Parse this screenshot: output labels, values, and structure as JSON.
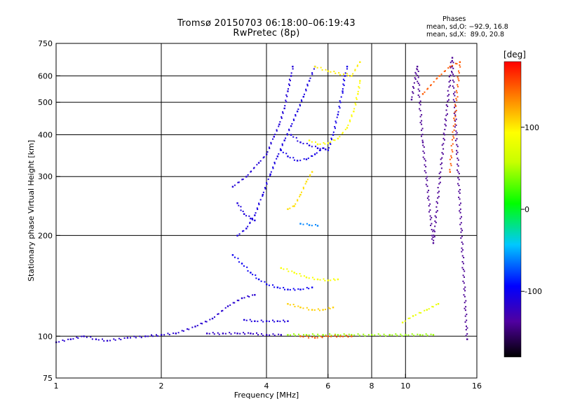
{
  "title": "Tromsø 20150703 06:18:00–06:19:43",
  "subtitle": "RwPretec (8p)",
  "phase_info": {
    "heading": "Phases",
    "line1": "mean, sd,O: −92.9, 16.8",
    "line2": "mean, sd,X:  89.0, 20.8"
  },
  "colorbar": {
    "label": "[deg]",
    "ticks": [
      {
        "v": 100,
        "label": "100"
      },
      {
        "v": 0,
        "label": "0"
      },
      {
        "v": -100,
        "label": "-100"
      }
    ],
    "range": [
      -180,
      180
    ]
  },
  "chart_data": {
    "type": "scatter",
    "xlabel": "Frequency [MHz]",
    "ylabel": "Stationary phase Virtual Height [km]",
    "x_scale": "log",
    "y_scale": "log",
    "xlim": [
      1,
      16
    ],
    "ylim": [
      75,
      750
    ],
    "x_ticks": [
      {
        "v": 1,
        "label": "1"
      },
      {
        "v": 2,
        "label": "2"
      },
      {
        "v": 4,
        "label": "4"
      },
      {
        "v": 6,
        "label": "6"
      },
      {
        "v": 8,
        "label": "8"
      },
      {
        "v": 10,
        "label": "10"
      },
      {
        "v": 16,
        "label": "16"
      }
    ],
    "y_ticks": [
      {
        "v": 75,
        "label": "75"
      },
      {
        "v": 100,
        "label": "100"
      },
      {
        "v": 200,
        "label": "200"
      },
      {
        "v": 300,
        "label": "300"
      },
      {
        "v": 400,
        "label": "400"
      },
      {
        "v": 500,
        "label": "500"
      },
      {
        "v": 600,
        "label": "600"
      },
      {
        "v": 750,
        "label": "750"
      }
    ],
    "grid_x": [
      2,
      4,
      6,
      8,
      10
    ],
    "grid_y": [
      100,
      200,
      300,
      400,
      500,
      600
    ],
    "series": [
      {
        "phase": -115,
        "points": [
          [
            1.0,
            96
          ],
          [
            1.1,
            98
          ],
          [
            1.2,
            100
          ],
          [
            1.3,
            98
          ],
          [
            1.4,
            97
          ],
          [
            1.6,
            99
          ],
          [
            1.8,
            100
          ],
          [
            2.0,
            101
          ],
          [
            2.2,
            102
          ],
          [
            2.5,
            107
          ],
          [
            2.8,
            113
          ],
          [
            3.1,
            123
          ],
          [
            3.4,
            130
          ],
          [
            3.7,
            133
          ]
        ]
      },
      {
        "phase": -120,
        "points": [
          [
            2.7,
            102
          ],
          [
            3.0,
            102
          ],
          [
            3.3,
            102
          ],
          [
            3.6,
            102
          ],
          [
            4.0,
            101
          ],
          [
            4.4,
            101
          ]
        ]
      },
      {
        "phase": -110,
        "points": [
          [
            3.45,
            112
          ],
          [
            3.7,
            111
          ],
          [
            4.0,
            111
          ],
          [
            4.3,
            111
          ],
          [
            4.6,
            111
          ]
        ]
      },
      {
        "phase": -110,
        "points": [
          [
            3.3,
            250
          ],
          [
            3.45,
            232
          ],
          [
            3.6,
            225
          ],
          [
            3.7,
            222
          ]
        ]
      },
      {
        "phase": -108,
        "points": [
          [
            3.3,
            200
          ],
          [
            3.5,
            210
          ],
          [
            3.7,
            230
          ],
          [
            3.9,
            265
          ],
          [
            4.1,
            305
          ],
          [
            4.3,
            345
          ],
          [
            4.5,
            385
          ],
          [
            4.7,
            425
          ],
          [
            4.9,
            470
          ],
          [
            5.1,
            520
          ],
          [
            5.3,
            580
          ],
          [
            5.5,
            640
          ]
        ]
      },
      {
        "phase": -112,
        "points": [
          [
            3.2,
            280
          ],
          [
            3.5,
            300
          ],
          [
            3.8,
            330
          ],
          [
            4.0,
            350
          ],
          [
            4.2,
            395
          ],
          [
            4.35,
            430
          ],
          [
            4.5,
            480
          ],
          [
            4.6,
            540
          ],
          [
            4.7,
            600
          ],
          [
            4.75,
            640
          ]
        ]
      },
      {
        "phase": -105,
        "points": [
          [
            4.4,
            360
          ],
          [
            4.6,
            345
          ],
          [
            4.9,
            335
          ],
          [
            5.2,
            338
          ],
          [
            5.5,
            350
          ],
          [
            5.8,
            365
          ],
          [
            6.0,
            360
          ],
          [
            6.2,
            400
          ],
          [
            6.4,
            460
          ],
          [
            6.6,
            540
          ],
          [
            6.7,
            600
          ],
          [
            6.8,
            640
          ]
        ]
      },
      {
        "phase": -110,
        "points": [
          [
            4.7,
            400
          ],
          [
            5.0,
            380
          ],
          [
            5.3,
            372
          ],
          [
            5.6,
            365
          ],
          [
            5.9,
            362
          ]
        ]
      },
      {
        "phase": 95,
        "points": [
          [
            5.3,
            385
          ],
          [
            5.6,
            375
          ],
          [
            6.0,
            378
          ],
          [
            6.4,
            390
          ],
          [
            6.8,
            420
          ],
          [
            7.1,
            470
          ],
          [
            7.3,
            530
          ],
          [
            7.4,
            580
          ]
        ]
      },
      {
        "phase": 105,
        "points": [
          [
            4.6,
            240
          ],
          [
            4.8,
            245
          ],
          [
            5.0,
            265
          ],
          [
            5.2,
            290
          ],
          [
            5.4,
            310
          ]
        ]
      },
      {
        "phase": 100,
        "points": [
          [
            5.5,
            640
          ],
          [
            6.0,
            620
          ],
          [
            7.0,
            600
          ],
          [
            7.4,
            660
          ]
        ]
      },
      {
        "phase": -60,
        "points": [
          [
            5.0,
            217
          ],
          [
            5.3,
            215
          ],
          [
            5.6,
            214
          ]
        ]
      },
      {
        "phase": 110,
        "points": [
          [
            4.6,
            125
          ],
          [
            5.0,
            122
          ],
          [
            5.4,
            120
          ],
          [
            5.8,
            120
          ],
          [
            6.2,
            122
          ]
        ]
      },
      {
        "phase": -100,
        "points": [
          [
            3.2,
            175
          ],
          [
            3.4,
            165
          ],
          [
            3.6,
            155
          ],
          [
            3.8,
            148
          ],
          [
            4.0,
            143
          ],
          [
            4.3,
            140
          ],
          [
            4.6,
            138
          ],
          [
            5.0,
            138
          ],
          [
            5.4,
            140
          ]
        ]
      },
      {
        "phase": 90,
        "points": [
          [
            4.4,
            160
          ],
          [
            4.8,
            155
          ],
          [
            5.2,
            150
          ],
          [
            5.6,
            148
          ],
          [
            6.0,
            147
          ],
          [
            6.4,
            148
          ]
        ]
      },
      {
        "phase": 45,
        "points": [
          [
            4.6,
            101
          ],
          [
            5.2,
            101
          ],
          [
            5.8,
            101
          ],
          [
            6.4,
            101
          ],
          [
            7.0,
            101
          ],
          [
            8.0,
            101
          ],
          [
            9.0,
            101
          ],
          [
            10.0,
            101
          ],
          [
            11.0,
            101
          ],
          [
            12.0,
            101
          ]
        ]
      },
      {
        "phase": 150,
        "points": [
          [
            5.0,
            100
          ],
          [
            5.5,
            99
          ],
          [
            6.0,
            100
          ],
          [
            6.5,
            100
          ],
          [
            7.0,
            100
          ]
        ]
      },
      {
        "phase": -140,
        "points": [
          [
            10.4,
            510
          ],
          [
            10.8,
            640
          ],
          [
            11.2,
            380
          ],
          [
            12.0,
            190
          ],
          [
            13.6,
            680
          ],
          [
            15.0,
            98
          ]
        ]
      },
      {
        "phase": 150,
        "points": [
          [
            11.2,
            530
          ],
          [
            12.5,
            600
          ],
          [
            13.4,
            640
          ],
          [
            14.3,
            660
          ],
          [
            13.4,
            310
          ]
        ]
      },
      {
        "phase": 80,
        "points": [
          [
            9.8,
            110
          ],
          [
            10.5,
            115
          ],
          [
            11.5,
            120
          ],
          [
            12.4,
            125
          ]
        ]
      }
    ]
  }
}
